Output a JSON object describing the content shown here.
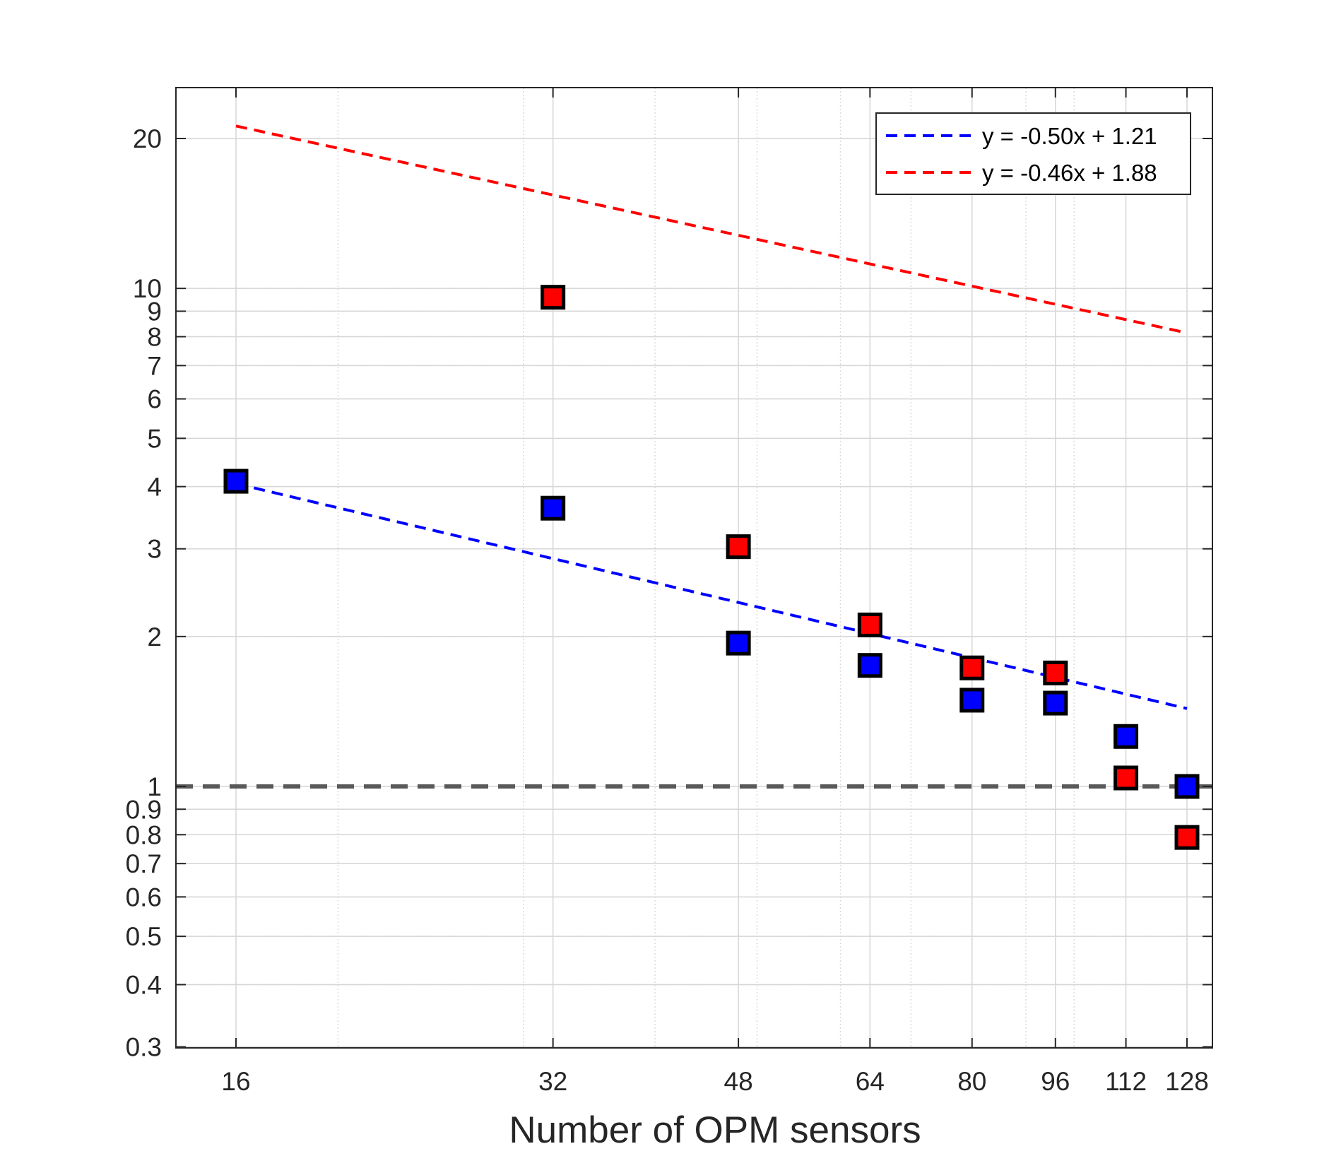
{
  "chart_data": {
    "type": "scatter",
    "title": "",
    "xlabel": "Number of OPM sensors",
    "ylabel": "",
    "xscale": "log",
    "yscale": "log",
    "xlim": [
      14,
      130
    ],
    "ylim": [
      0.3,
      25
    ],
    "xticks": [
      16,
      32,
      48,
      64,
      80,
      96,
      112,
      128
    ],
    "xtick_labels": [
      "16",
      "32",
      "48",
      "64",
      "80",
      "96",
      "112",
      "128"
    ],
    "yticks": [
      0.3,
      0.4,
      0.5,
      0.6,
      0.7,
      0.8,
      0.9,
      1,
      2,
      3,
      4,
      5,
      6,
      7,
      8,
      9,
      10,
      20
    ],
    "ytick_labels": [
      "0.3",
      "0.4",
      "0.5",
      "0.6",
      "0.7",
      "0.8",
      "0.9",
      "1",
      "2",
      "3",
      "4",
      "5",
      "6",
      "7",
      "8",
      "9",
      "10",
      "20"
    ],
    "grid": true,
    "legend_position": "top-right",
    "series": [
      {
        "color": "#0000ff",
        "marker": "square",
        "x": [
          16,
          32,
          48,
          64,
          80,
          96,
          112,
          128
        ],
        "y": [
          4.1,
          3.62,
          1.94,
          1.75,
          1.49,
          1.47,
          1.26,
          1.0
        ]
      },
      {
        "color": "#ff0000",
        "marker": "square",
        "x": [
          32,
          48,
          64,
          80,
          96,
          112,
          128
        ],
        "y": [
          9.6,
          3.03,
          2.11,
          1.73,
          1.69,
          1.04,
          0.79
        ]
      }
    ],
    "fits": [
      {
        "label": "y = -0.50x + 1.21",
        "color": "#0000ff",
        "slope": -0.5,
        "intercept": 1.21,
        "x_range": [
          16,
          128
        ]
      },
      {
        "label": "y = -0.46x + 1.88",
        "color": "#ff0000",
        "slope": -0.46,
        "intercept": 1.88,
        "x_range": [
          16,
          128
        ]
      }
    ],
    "reference_line": {
      "y": 1,
      "color": "#595959",
      "style": "dashed"
    }
  }
}
